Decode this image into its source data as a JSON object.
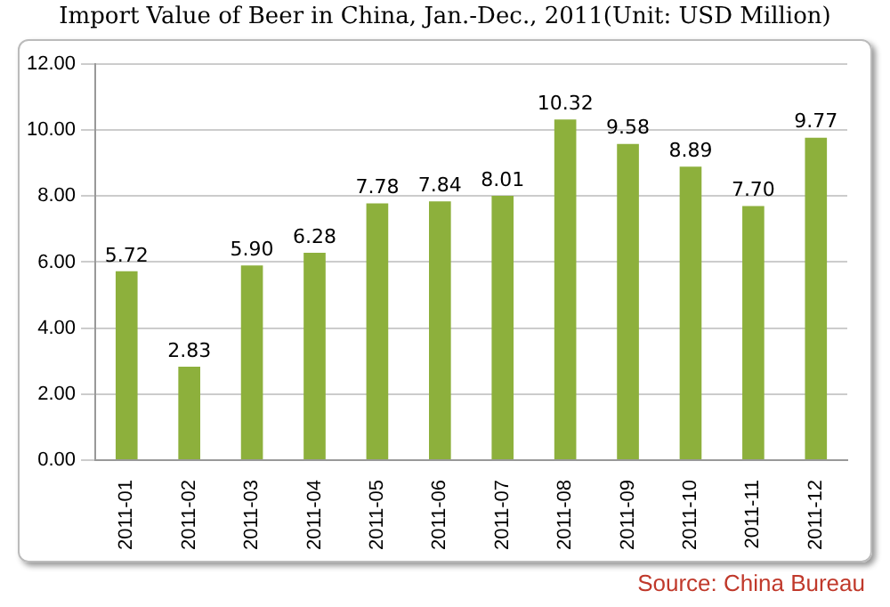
{
  "chart_data": {
    "type": "bar",
    "title": "Import Value of Beer in China, Jan.-Dec., 2011(Unit: USD Million)",
    "categories": [
      "2011-01",
      "2011-02",
      "2011-03",
      "2011-04",
      "2011-05",
      "2011-06",
      "2011-07",
      "2011-08",
      "2011-09",
      "2011-10",
      "2011-11",
      "2011-12"
    ],
    "values": [
      5.72,
      2.83,
      5.9,
      6.28,
      7.78,
      7.84,
      8.01,
      10.32,
      9.58,
      8.89,
      7.7,
      9.77
    ],
    "value_labels": [
      "5.72",
      "2.83",
      "5.90",
      "6.28",
      "7.78",
      "7.84",
      "8.01",
      "10.32",
      "9.58",
      "8.89",
      "7.70",
      "9.77"
    ],
    "color": "#8db03c",
    "ylim": [
      0,
      12
    ],
    "yticks": [
      {
        "value": 0,
        "label": "0.00"
      },
      {
        "value": 2,
        "label": "2.00"
      },
      {
        "value": 4,
        "label": "4.00"
      },
      {
        "value": 6,
        "label": "6.00"
      },
      {
        "value": 8,
        "label": "8.00"
      },
      {
        "value": 10,
        "label": "10.00"
      },
      {
        "value": 12,
        "label": "12.00"
      }
    ],
    "grid": "y",
    "legend": false,
    "annotations": [
      "Source:   China Bureau"
    ]
  }
}
